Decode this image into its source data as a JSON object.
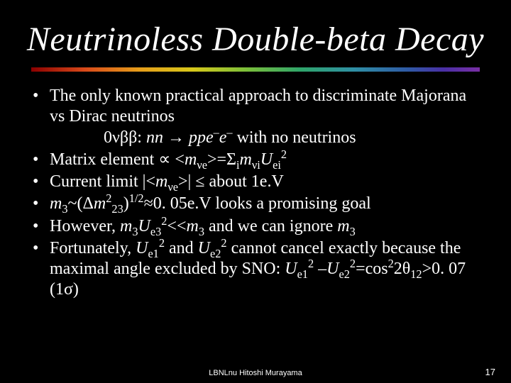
{
  "slide": {
    "background_color": "#000000",
    "text_color": "#ffffff",
    "title": {
      "text": "Neutrinoless Double-beta Decay",
      "font_size_pt": 36,
      "font_style": "italic",
      "font_family": "Times New Roman"
    },
    "underline_gradient_colors": [
      "#8b0000",
      "#d94a1a",
      "#e69d1a",
      "#d7c81a",
      "#7bbf3a",
      "#2fa56a",
      "#2f8fa5",
      "#2f5aa5",
      "#4a2fa5",
      "#7a2fa5"
    ],
    "bullets": {
      "font_size_pt": 24,
      "font_family": "Times New Roman",
      "items": [
        {
          "line": "The only known practical approach to discriminate Majorana vs Dirac neutrinos",
          "subline_parts": {
            "p0": "0",
            "p1": "νββ",
            "p2": ": ",
            "p3": "nn",
            "p4": " → ",
            "p5": "ppe",
            "p6": "–",
            "p7": "e",
            "p8": "–",
            "p9": " with no neutrinos"
          }
        },
        {
          "parts": {
            "p0": "Matrix element ∝ <",
            "p1": "m",
            "p2": "νe",
            "p3": ">=Σ",
            "p4": "i",
            "p5": "m",
            "p6": "νi",
            "p7": "U",
            "p8": "ei",
            "p9": "2"
          }
        },
        {
          "parts": {
            "p0": "Current limit |<",
            "p1": "m",
            "p2": "νe",
            "p3": ">| ≤ about 1e.V"
          }
        },
        {
          "parts": {
            "p0": "m",
            "p1": "3",
            "p2": "~(Δ",
            "p3": "m",
            "p4": "2",
            "p5": "23",
            "p6": ")",
            "p7": "1/2",
            "p8": "≈0. 05e.V looks a promising goal"
          }
        },
        {
          "parts": {
            "p0": "However, ",
            "p1": "m",
            "p2": "3",
            "p3": "U",
            "p4": "e3",
            "p5": "2",
            "p6": "<<",
            "p7": "m",
            "p8": "3",
            "p9": " and we can ignore ",
            "p10": "m",
            "p11": "3"
          }
        },
        {
          "parts": {
            "p0": "Fortunately, ",
            "p1": "U",
            "p2": "e1",
            "p3": "2",
            "p4": " and ",
            "p5": "U",
            "p6": "e2",
            "p7": "2",
            "p8": " cannot cancel exactly because the maximal angle excluded by SNO: ",
            "p9": "U",
            "p10": "e1",
            "p11": "2",
            "p12": " –",
            "p13": "U",
            "p14": "e2",
            "p15": "2",
            "p16": "=cos",
            "p17": "2",
            "p18": "2θ",
            "p19": "12",
            "p20": ">0. 07 (1σ)"
          }
        }
      ]
    },
    "footer": {
      "center_text": "LBNLnu Hitoshi Murayama",
      "page_number": "17",
      "font_size_pt": 11,
      "font_family": "Arial"
    }
  }
}
